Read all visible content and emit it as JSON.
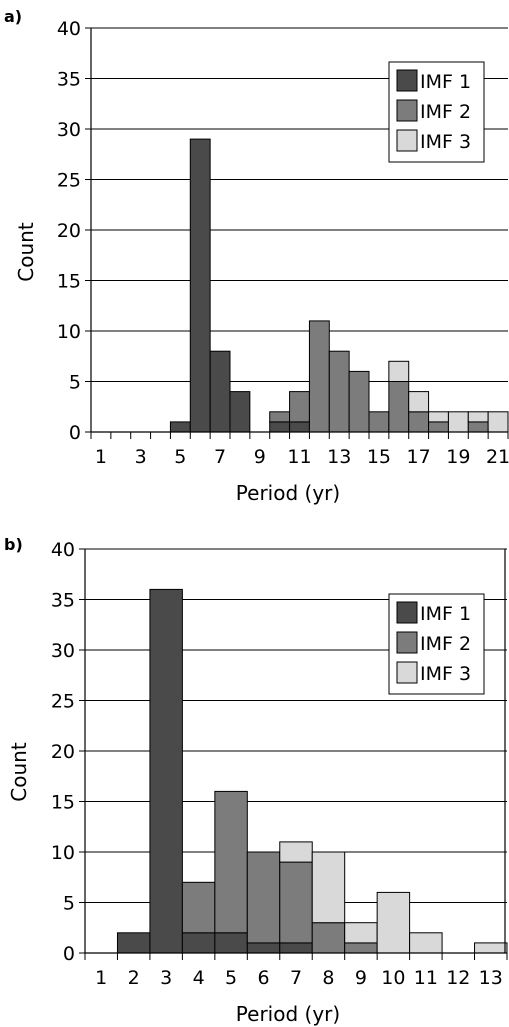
{
  "chart_data": [
    {
      "panel_label": "a)",
      "type": "bar",
      "stacked": true,
      "xlabel": "Period (yr)",
      "ylabel": "Count",
      "ylim": [
        0,
        40
      ],
      "yticks": [
        0,
        5,
        10,
        15,
        20,
        25,
        30,
        35,
        40
      ],
      "xlim": [
        0,
        21
      ],
      "xtick_labels": [
        "1",
        "3",
        "5",
        "7",
        "9",
        "11",
        "13",
        "15",
        "17",
        "19",
        "21"
      ],
      "grid": "horizontal",
      "legend_position": "top-right",
      "series": [
        {
          "name": "IMF 1",
          "color": "#4a4a4a",
          "values": [
            0,
            0,
            0,
            0,
            1,
            29,
            8,
            4,
            0,
            1,
            1,
            0,
            0,
            0,
            0,
            0,
            0,
            0,
            0,
            0,
            0
          ]
        },
        {
          "name": "IMF 2",
          "color": "#7c7c7c",
          "values": [
            0,
            0,
            0,
            0,
            0,
            0,
            0,
            0,
            0,
            1,
            3,
            11,
            8,
            6,
            2,
            5,
            2,
            1,
            0,
            1,
            0
          ]
        },
        {
          "name": "IMF 3",
          "color": "#d9d9d9",
          "values": [
            0,
            0,
            0,
            0,
            0,
            0,
            0,
            0,
            0,
            0,
            0,
            0,
            0,
            0,
            0,
            2,
            2,
            1,
            2,
            1,
            2
          ]
        }
      ]
    },
    {
      "panel_label": "b)",
      "type": "bar",
      "stacked": true,
      "xlabel": "Period (yr)",
      "ylabel": "Count",
      "ylim": [
        0,
        40
      ],
      "yticks": [
        0,
        5,
        10,
        15,
        20,
        25,
        30,
        35,
        40
      ],
      "xlim": [
        0.5,
        13.5
      ],
      "xtick_labels": [
        "1",
        "2",
        "3",
        "4",
        "5",
        "6",
        "7",
        "8",
        "9",
        "10",
        "11",
        "12",
        "13"
      ],
      "grid": "horizontal",
      "legend_position": "top-right",
      "series": [
        {
          "name": "IMF 1",
          "color": "#4a4a4a",
          "values": [
            0,
            2,
            36,
            2,
            2,
            1,
            1,
            0,
            0,
            0,
            0,
            0,
            0
          ]
        },
        {
          "name": "IMF 2",
          "color": "#7c7c7c",
          "values": [
            0,
            0,
            0,
            5,
            14,
            9,
            8,
            3,
            1,
            0,
            0,
            0,
            0
          ]
        },
        {
          "name": "IMF 3",
          "color": "#d9d9d9",
          "values": [
            0,
            0,
            0,
            0,
            0,
            0,
            2,
            7,
            2,
            6,
            2,
            0,
            1
          ]
        }
      ]
    }
  ]
}
